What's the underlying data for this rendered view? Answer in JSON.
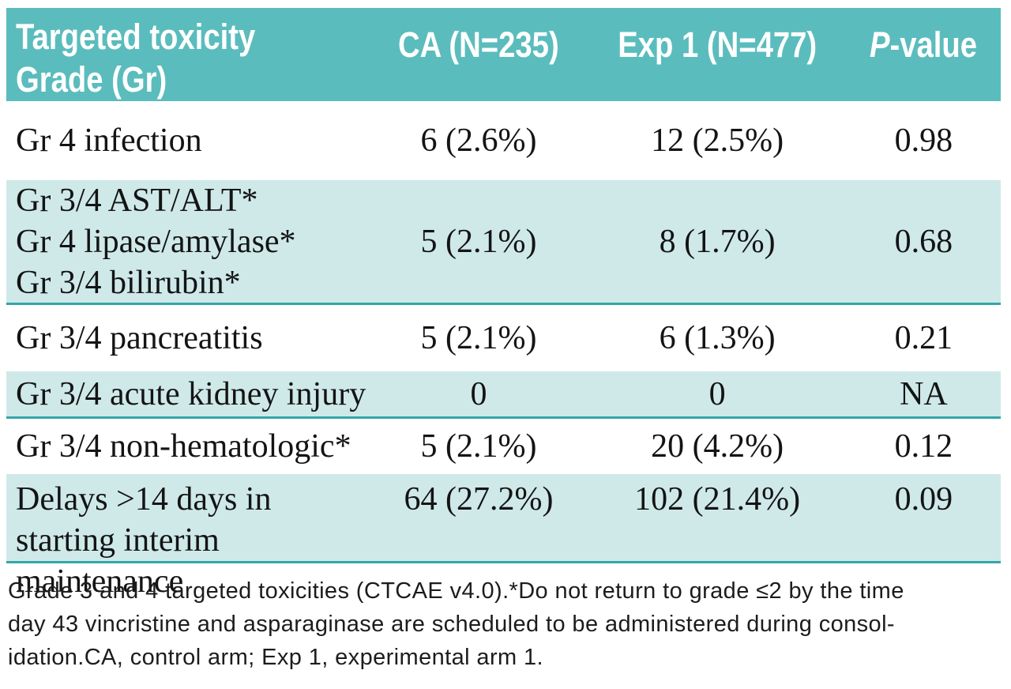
{
  "colors": {
    "header_bg": "#5bbcbd",
    "row_shaded_bg": "#cfe9e9",
    "divider": "#35a5a6",
    "header_text": "#ffffff",
    "body_text": "#141414",
    "page_bg": "#ffffff"
  },
  "table": {
    "header": {
      "col1": "Targeted toxicity\nGrade (Gr)",
      "col2": "CA (N=235)",
      "col3": "Exp 1 (N=477)",
      "col4_italic": "P",
      "col4_rest": "-value"
    },
    "rows": [
      {
        "label": "Gr 4 infection",
        "ca": "6 (2.6%)",
        "exp1": "12 (2.5%)",
        "p": "0.98"
      },
      {
        "label": "Gr 3/4 AST/ALT*\nGr 4 lipase/amylase*\nGr 3/4 bilirubin*",
        "ca": "5 (2.1%)",
        "exp1": "8 (1.7%)",
        "p": "0.68"
      },
      {
        "label": "Gr 3/4 pancreatitis",
        "ca": "5 (2.1%)",
        "exp1": "6 (1.3%)",
        "p": "0.21"
      },
      {
        "label": "Gr 3/4 acute kidney injury",
        "ca": "0",
        "exp1": "0",
        "p": "NA"
      },
      {
        "label": "Gr 3/4 non-hematologic*",
        "ca": "5 (2.1%)",
        "exp1": "20 (4.2%)",
        "p": "0.12"
      },
      {
        "label": "Delays >14 days in\nstarting interim maintenance",
        "ca": "64 (27.2%)",
        "exp1": "102 (21.4%)",
        "p": "0.09"
      }
    ]
  },
  "footnote": {
    "text": "Grade 3 and 4 targeted toxicities (CTCAE v4.0).*Do not return to grade ≤2 by the time\nday 43 vincristine and asparaginase are scheduled to be administered during consol-\nidation.CA, control arm; Exp 1, experimental arm 1."
  }
}
